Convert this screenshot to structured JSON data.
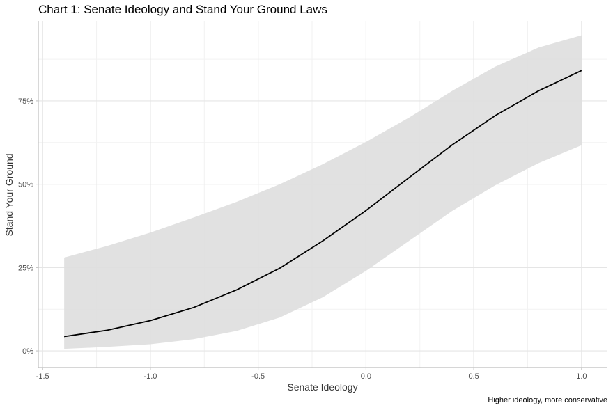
{
  "chart_data": {
    "type": "line",
    "title": "Chart 1: Senate Ideology and Stand Your Ground Laws",
    "xlabel": "Senate Ideology",
    "ylabel": "Stand Your Ground",
    "caption": "Higher ideology, more conservative",
    "xlim": [
      -1.52,
      1.12
    ],
    "ylim": [
      -0.05,
      0.99
    ],
    "x_ticks": [
      -1.5,
      -1.0,
      -0.5,
      0.0,
      0.5,
      1.0
    ],
    "x_tick_labels": [
      "-1.5",
      "-1.0",
      "-0.5",
      "0.0",
      "0.5",
      "1.0"
    ],
    "y_ticks": [
      0,
      0.25,
      0.5,
      0.75
    ],
    "y_tick_labels": [
      "0%",
      "25%",
      "50%",
      "75%"
    ],
    "grid": true,
    "line_color": "#000000",
    "band_color": "#dedede",
    "series": [
      {
        "x": [
          -1.4,
          -1.2,
          -1.0,
          -0.8,
          -0.6,
          -0.4,
          -0.2,
          0.0,
          0.2,
          0.4,
          0.6,
          0.8,
          1.0
        ],
        "y": [
          0.043,
          0.062,
          0.091,
          0.13,
          0.183,
          0.248,
          0.33,
          0.421,
          0.52,
          0.618,
          0.706,
          0.78,
          0.841
        ],
        "lower": [
          0.006,
          0.012,
          0.02,
          0.035,
          0.06,
          0.1,
          0.161,
          0.24,
          0.33,
          0.42,
          0.497,
          0.563,
          0.617
        ],
        "upper": [
          0.28,
          0.315,
          0.355,
          0.4,
          0.447,
          0.5,
          0.56,
          0.627,
          0.7,
          0.78,
          0.853,
          0.91,
          0.947
        ]
      }
    ]
  }
}
